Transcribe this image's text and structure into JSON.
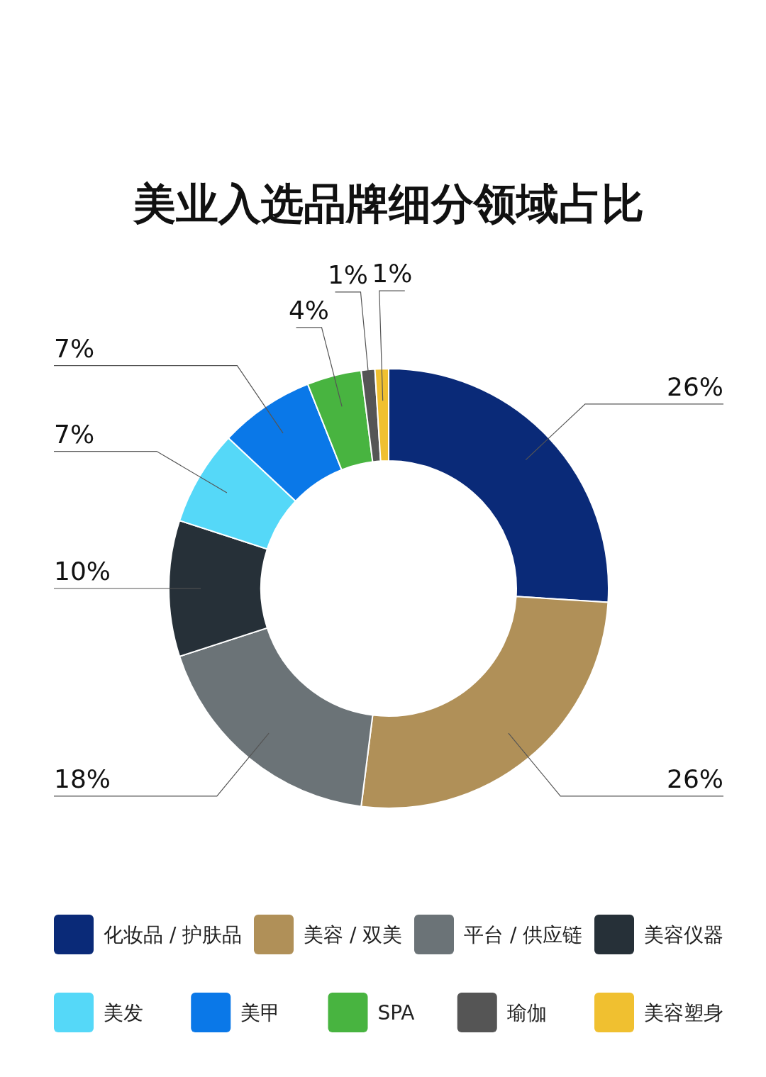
{
  "chart_data": {
    "type": "donut",
    "title": "美业入选品牌细分领域占比",
    "categories": [
      "化妆品 / 护肤品",
      "美容 / 双美",
      "平台 / 供应链",
      "美容仪器",
      "美发",
      "美甲",
      "SPA",
      "瑜伽",
      "美容塑身"
    ],
    "values": [
      26,
      26,
      18,
      10,
      7,
      7,
      4,
      1,
      1
    ],
    "value_labels": [
      "26%",
      "26%",
      "18%",
      "10%",
      "7%",
      "7%",
      "4%",
      "1%",
      "1%"
    ],
    "colors": [
      "#0a2a78",
      "#b09058",
      "#6b7377",
      "#263038",
      "#55d8f8",
      "#0a78e8",
      "#48b440",
      "#555555",
      "#f0c030"
    ],
    "legend": "bottom"
  }
}
